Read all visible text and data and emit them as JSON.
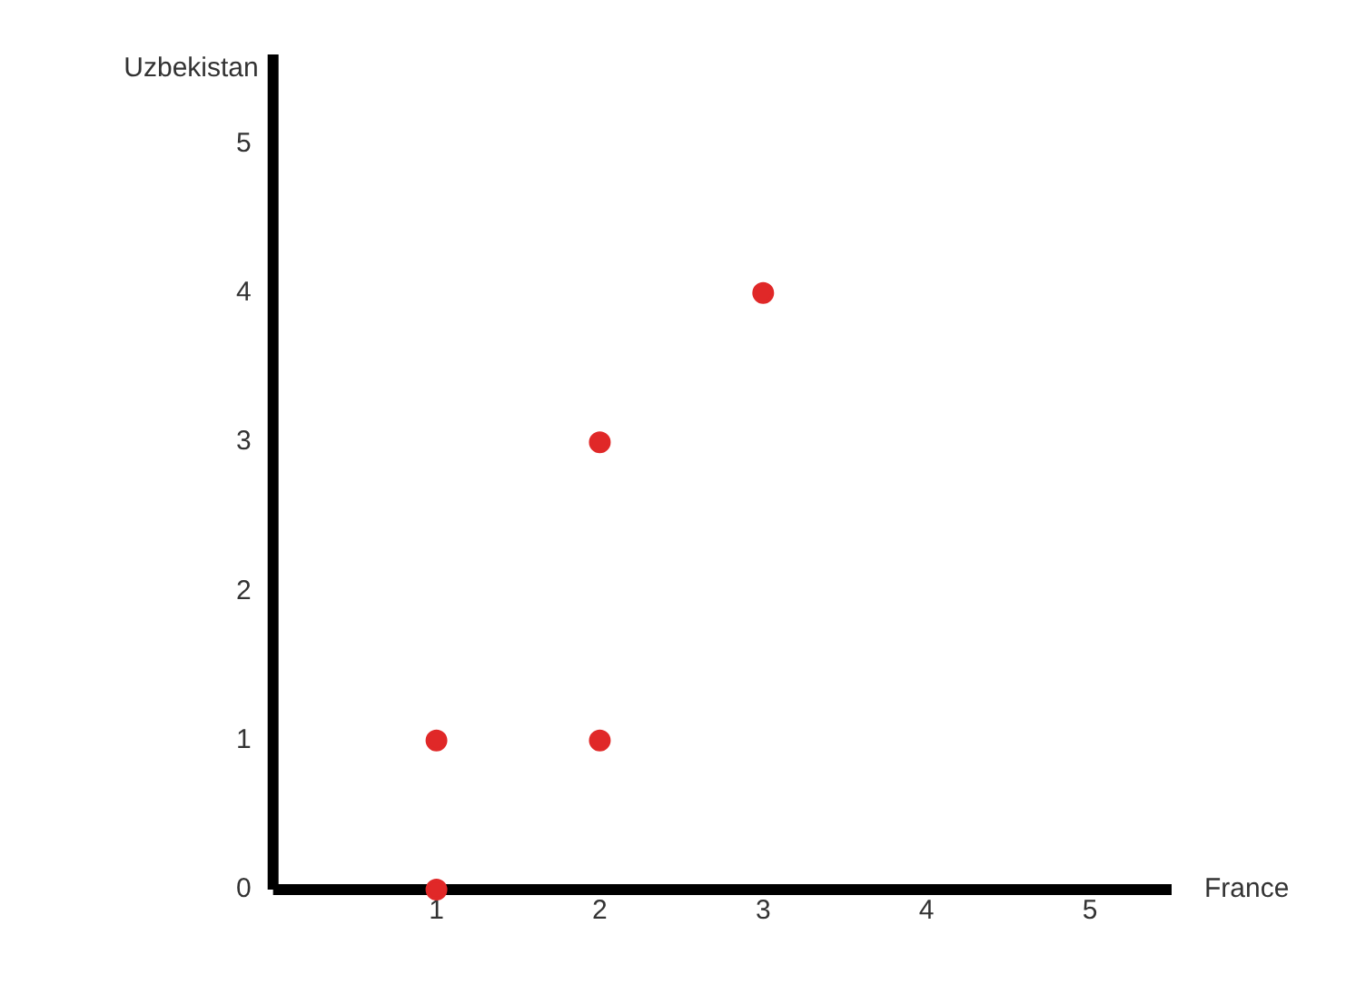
{
  "chart_data": {
    "type": "scatter",
    "xlabel": "France",
    "ylabel": "Uzbekistan",
    "x": [
      1,
      1,
      2,
      2,
      3
    ],
    "series": [
      {
        "color": "#e02828",
        "values": [
          0,
          1,
          1,
          3,
          4
        ]
      }
    ],
    "xlim": [
      0,
      5.5
    ],
    "ylim": [
      0,
      5.6
    ],
    "xticks": [
      1,
      2,
      3,
      4,
      5
    ],
    "yticks": [
      0,
      1,
      2,
      3,
      4,
      5
    ],
    "grid": false,
    "legend": false,
    "marker": "circle"
  }
}
